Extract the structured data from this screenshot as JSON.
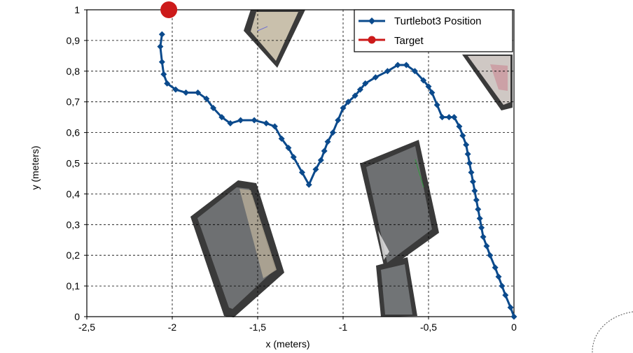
{
  "chart_data": {
    "type": "line",
    "xlabel": "x (meters)",
    "ylabel": "y (meters)",
    "xlim": [
      -2.5,
      0
    ],
    "ylim": [
      0,
      1
    ],
    "x_ticks": [
      "-2,5",
      "-2",
      "-1,5",
      "-1",
      "-0,5",
      "0"
    ],
    "y_ticks": [
      "0",
      "0,1",
      "0,2",
      "0,3",
      "0,4",
      "0,5",
      "0,6",
      "0,7",
      "0,8",
      "0,9",
      "1"
    ],
    "grid": true,
    "legend_position": "top-right",
    "series": [
      {
        "name": "Turtlebot3 Position",
        "color": "#0b4a8c",
        "marker": "diamond",
        "points": [
          [
            0.0,
            0.0
          ],
          [
            -0.02,
            0.03
          ],
          [
            -0.05,
            0.07
          ],
          [
            -0.07,
            0.1
          ],
          [
            -0.09,
            0.13
          ],
          [
            -0.11,
            0.16
          ],
          [
            -0.14,
            0.2
          ],
          [
            -0.16,
            0.23
          ],
          [
            -0.18,
            0.26
          ],
          [
            -0.19,
            0.29
          ],
          [
            -0.2,
            0.32
          ],
          [
            -0.21,
            0.35
          ],
          [
            -0.22,
            0.38
          ],
          [
            -0.23,
            0.41
          ],
          [
            -0.24,
            0.44
          ],
          [
            -0.25,
            0.47
          ],
          [
            -0.26,
            0.5
          ],
          [
            -0.27,
            0.53
          ],
          [
            -0.28,
            0.56
          ],
          [
            -0.3,
            0.59
          ],
          [
            -0.32,
            0.62
          ],
          [
            -0.35,
            0.65
          ],
          [
            -0.38,
            0.65
          ],
          [
            -0.42,
            0.65
          ],
          [
            -0.45,
            0.69
          ],
          [
            -0.48,
            0.73
          ],
          [
            -0.5,
            0.75
          ],
          [
            -0.53,
            0.77
          ],
          [
            -0.58,
            0.8
          ],
          [
            -0.63,
            0.82
          ],
          [
            -0.68,
            0.82
          ],
          [
            -0.74,
            0.8
          ],
          [
            -0.81,
            0.78
          ],
          [
            -0.87,
            0.76
          ],
          [
            -0.9,
            0.74
          ],
          [
            -0.93,
            0.72
          ],
          [
            -0.97,
            0.7
          ],
          [
            -1.0,
            0.68
          ],
          [
            -1.03,
            0.64
          ],
          [
            -1.06,
            0.6
          ],
          [
            -1.09,
            0.57
          ],
          [
            -1.11,
            0.54
          ],
          [
            -1.13,
            0.51
          ],
          [
            -1.16,
            0.48
          ],
          [
            -1.2,
            0.43
          ],
          [
            -1.24,
            0.47
          ],
          [
            -1.29,
            0.52
          ],
          [
            -1.32,
            0.55
          ],
          [
            -1.36,
            0.58
          ],
          [
            -1.4,
            0.62
          ],
          [
            -1.45,
            0.63
          ],
          [
            -1.52,
            0.64
          ],
          [
            -1.6,
            0.64
          ],
          [
            -1.66,
            0.63
          ],
          [
            -1.71,
            0.65
          ],
          [
            -1.76,
            0.68
          ],
          [
            -1.8,
            0.71
          ],
          [
            -1.85,
            0.73
          ],
          [
            -1.92,
            0.73
          ],
          [
            -1.98,
            0.74
          ],
          [
            -2.03,
            0.76
          ],
          [
            -2.05,
            0.79
          ],
          [
            -2.06,
            0.83
          ],
          [
            -2.07,
            0.88
          ],
          [
            -2.06,
            0.92
          ]
        ]
      },
      {
        "name": "Target",
        "color": "#cc1a1a",
        "marker": "circle",
        "points": [
          [
            -2.02,
            1.0
          ]
        ]
      }
    ]
  },
  "colors": {
    "trajectory": "#0b4a8c",
    "target": "#cc1a1a",
    "obstacle_border": "#3a3a3a",
    "obstacle_fill": "#6e7072",
    "grid": "#000000"
  }
}
